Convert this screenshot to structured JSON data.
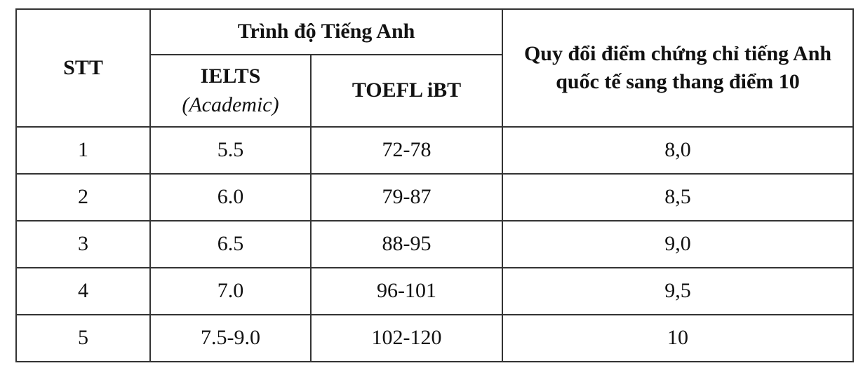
{
  "table": {
    "header": {
      "stt": "STT",
      "group": "Trình độ Tiếng Anh",
      "ielts": "IELTS",
      "ielts_note": "(Academic)",
      "toefl": "TOEFL iBT",
      "conversion": "Quy đổi điểm chứng chỉ tiếng Anh quốc tế sang thang điểm 10"
    },
    "rows": [
      [
        "1",
        "5.5",
        "72-78",
        "8,0"
      ],
      [
        "2",
        "6.0",
        "79-87",
        "8,5"
      ],
      [
        "3",
        "6.5",
        "88-95",
        "9,0"
      ],
      [
        "4",
        "7.0",
        "96-101",
        "9,5"
      ],
      [
        "5",
        "7.5-9.0",
        "102-120",
        "10"
      ]
    ]
  }
}
